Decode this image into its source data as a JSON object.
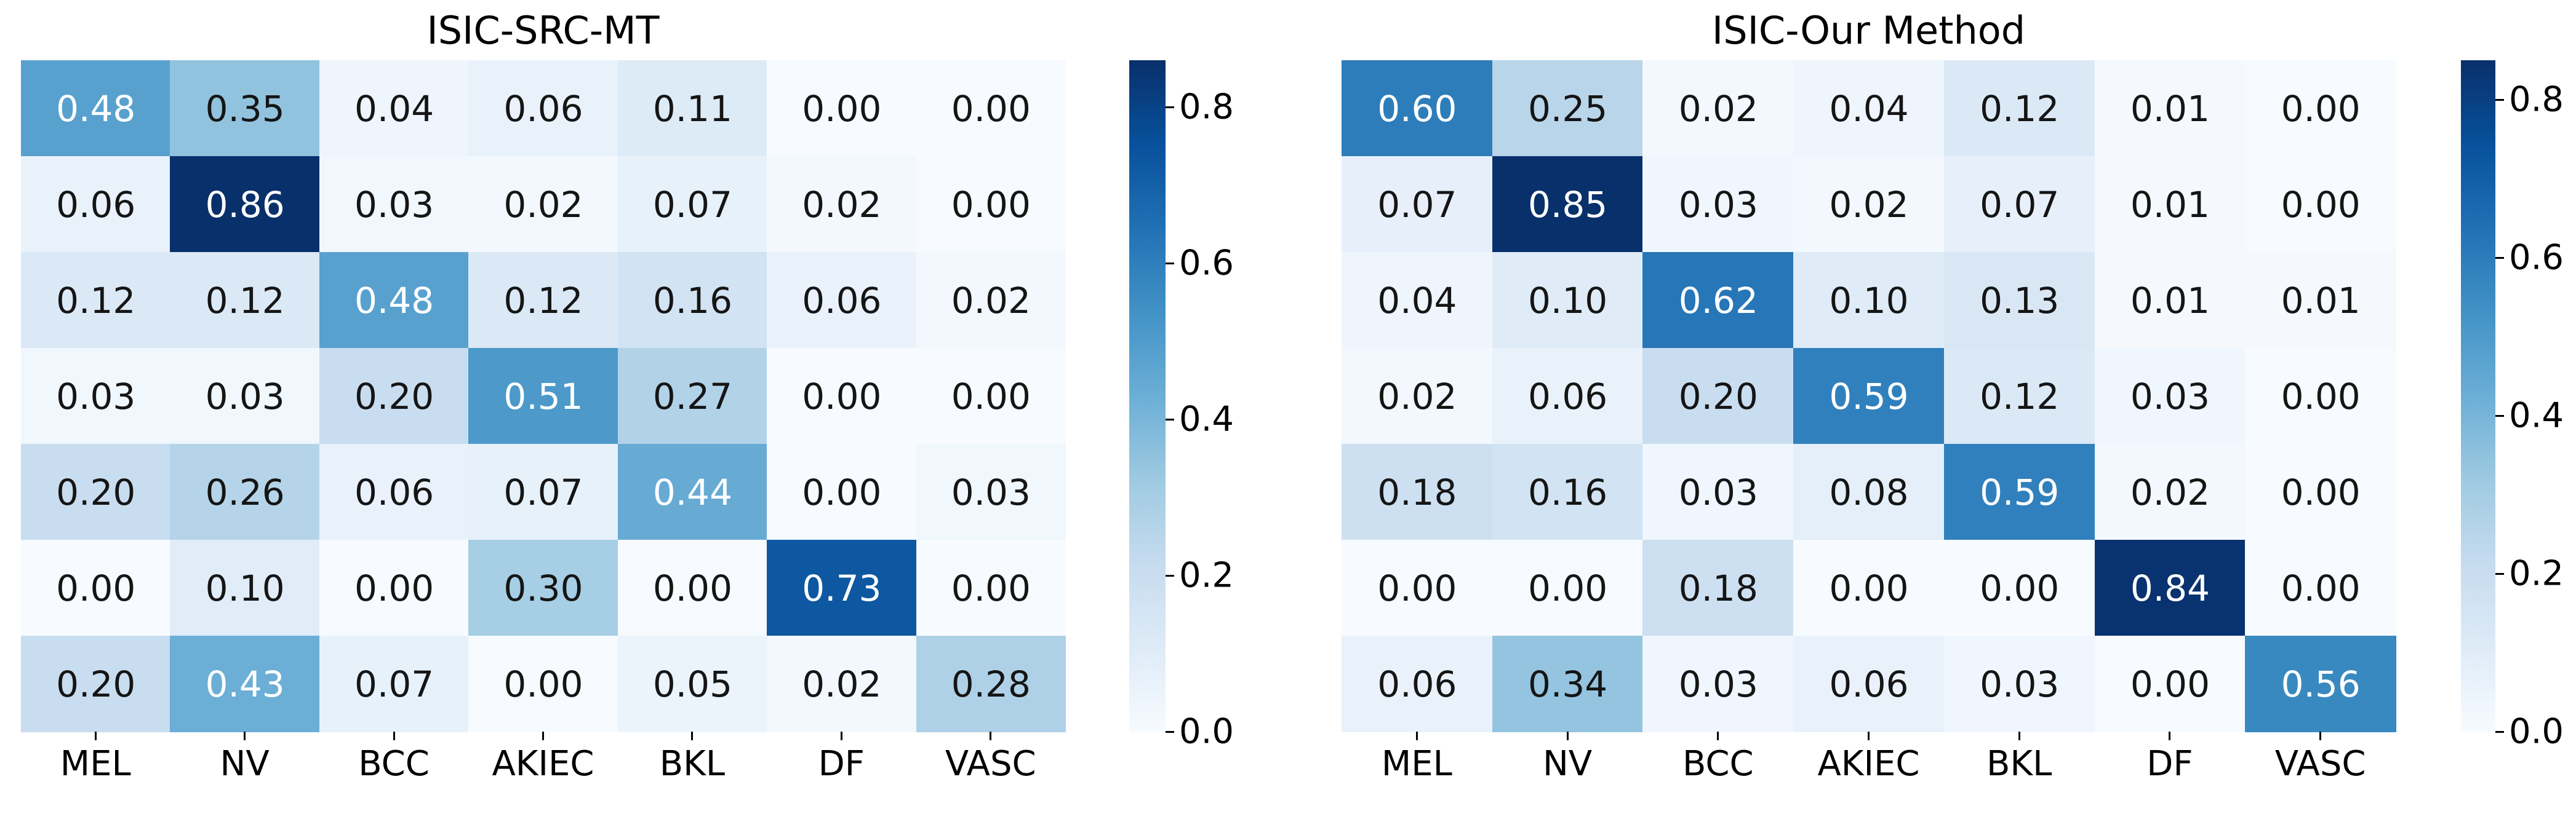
{
  "figure": {
    "background": "#ffffff"
  },
  "chart_data": [
    {
      "type": "heatmap",
      "title": "ISIC-SRC-MT",
      "x_labels": [
        "MEL",
        "NV",
        "BCC",
        "AKIEC",
        "BKL",
        "DF",
        "VASC"
      ],
      "values": [
        [
          0.48,
          0.35,
          0.04,
          0.06,
          0.11,
          0.0,
          0.0
        ],
        [
          0.06,
          0.86,
          0.03,
          0.02,
          0.07,
          0.02,
          0.0
        ],
        [
          0.12,
          0.12,
          0.48,
          0.12,
          0.16,
          0.06,
          0.02
        ],
        [
          0.03,
          0.03,
          0.2,
          0.51,
          0.27,
          0.0,
          0.0
        ],
        [
          0.2,
          0.26,
          0.06,
          0.07,
          0.44,
          0.0,
          0.03
        ],
        [
          0.0,
          0.1,
          0.0,
          0.3,
          0.0,
          0.73,
          0.0
        ],
        [
          0.2,
          0.43,
          0.07,
          0.0,
          0.05,
          0.02,
          0.28
        ]
      ],
      "vmin": 0.0,
      "vmax": 0.86,
      "colormap": "Blues",
      "annotation_format": "0.00",
      "colorbar_ticks": [
        0.8,
        0.6,
        0.4,
        0.2,
        0.0
      ],
      "colorbar_position": "right",
      "grid": false
    },
    {
      "type": "heatmap",
      "title": "ISIC-Our Method",
      "x_labels": [
        "MEL",
        "NV",
        "BCC",
        "AKIEC",
        "BKL",
        "DF",
        "VASC"
      ],
      "values": [
        [
          0.6,
          0.25,
          0.02,
          0.04,
          0.12,
          0.01,
          0.0
        ],
        [
          0.07,
          0.85,
          0.03,
          0.02,
          0.07,
          0.01,
          0.0
        ],
        [
          0.04,
          0.1,
          0.62,
          0.1,
          0.13,
          0.01,
          0.01
        ],
        [
          0.02,
          0.06,
          0.2,
          0.59,
          0.12,
          0.03,
          0.0
        ],
        [
          0.18,
          0.16,
          0.03,
          0.08,
          0.59,
          0.02,
          0.0
        ],
        [
          0.0,
          0.0,
          0.18,
          0.0,
          0.0,
          0.84,
          0.0
        ],
        [
          0.06,
          0.34,
          0.03,
          0.06,
          0.03,
          0.0,
          0.56
        ]
      ],
      "vmin": 0.0,
      "vmax": 0.85,
      "colormap": "Blues",
      "annotation_format": "0.00",
      "colorbar_ticks": [
        0.8,
        0.6,
        0.4,
        0.2,
        0.0
      ],
      "colorbar_position": "right",
      "grid": false
    }
  ],
  "colors": {
    "blues_anchors": [
      "#f7fbff",
      "#deebf7",
      "#c6dbef",
      "#9ecae1",
      "#6baed6",
      "#4292c6",
      "#2171b5",
      "#08519c",
      "#08306b"
    ],
    "annotation_dark": "#151515",
    "annotation_light": "#ffffff",
    "tick_color": "#000000",
    "title_color": "#000000"
  }
}
